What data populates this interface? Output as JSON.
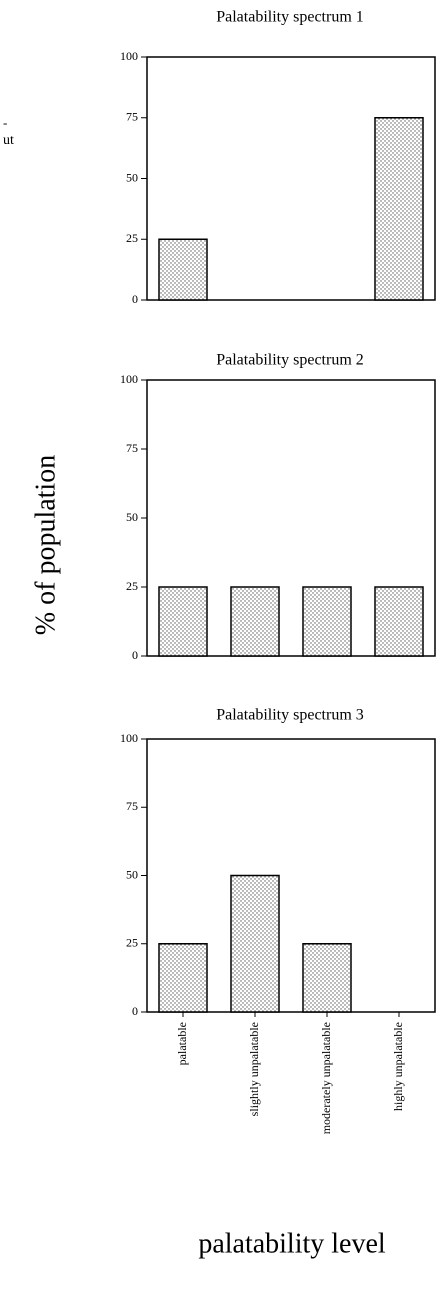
{
  "chart_data": [
    {
      "type": "bar",
      "title": "Palatability spectrum 1",
      "values": [
        25,
        0,
        0,
        75
      ],
      "ylim": [
        0,
        100
      ],
      "yticks": [
        0,
        25,
        50,
        75,
        100
      ],
      "color": "#555555"
    },
    {
      "type": "bar",
      "title": "Palatability spectrum 2",
      "values": [
        25,
        25,
        25,
        25
      ],
      "ylim": [
        0,
        100
      ],
      "yticks": [
        0,
        25,
        50,
        75,
        100
      ],
      "color": "#555555"
    },
    {
      "type": "bar",
      "title": "Palatability spectrum 3",
      "categories": [
        "palatable",
        "slightly unpalatable",
        "moderately unpalatable",
        "highly unpalatable"
      ],
      "values": [
        25,
        50,
        25,
        0
      ],
      "ylim": [
        0,
        100
      ],
      "yticks": [
        0,
        25,
        50,
        75,
        100
      ],
      "color": "#555555"
    }
  ],
  "y_label": "% of population",
  "x_label": "palatability level",
  "fragments": [
    "-",
    "ut"
  ]
}
